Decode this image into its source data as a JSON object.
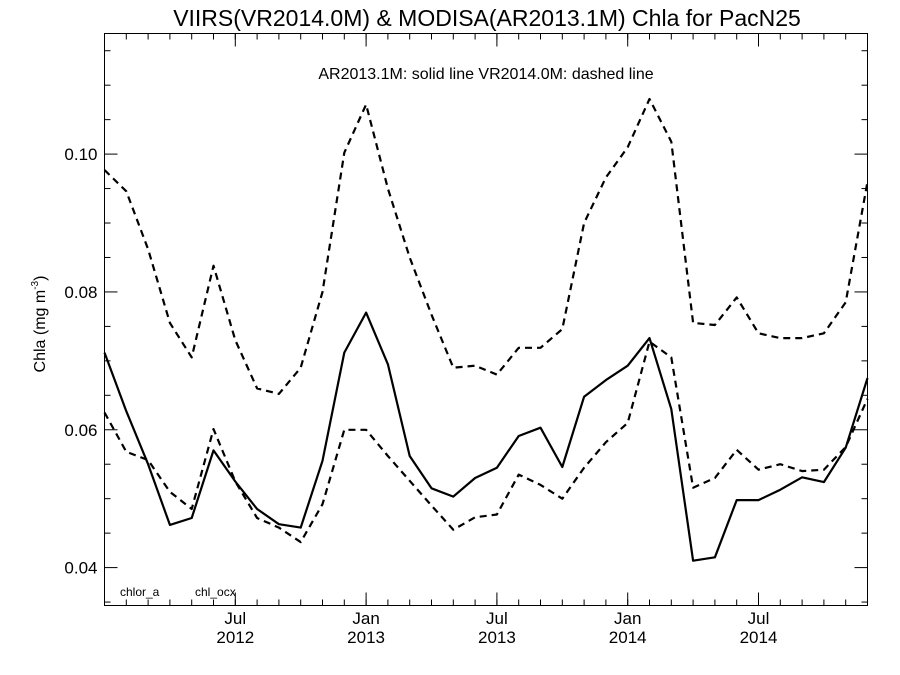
{
  "chart_data": {
    "type": "line",
    "title": "VIIRS(VR2014.0M) & MODISA(AR2013.1M)  Chla for PacN25",
    "annotation": "AR2013.1M: solid line   VR2014.0M: dashed line",
    "ylabel_main": "Chla (mg m",
    "ylabel_sup": "-3",
    "ylabel_close": ")",
    "ylim": [
      0.0345,
      0.1175
    ],
    "y_ticks": [
      0.04,
      0.06,
      0.08,
      0.1
    ],
    "y_tick_labels": [
      "0.04",
      "0.06",
      "0.08",
      "0.10"
    ],
    "x_range": [
      "2012-01",
      "2014-12"
    ],
    "x_ticks": [
      {
        "date": "2012-07",
        "month": "Jul",
        "year": "2012"
      },
      {
        "date": "2013-01",
        "month": "Jan",
        "year": "2013"
      },
      {
        "date": "2013-07",
        "month": "Jul",
        "year": "2013"
      },
      {
        "date": "2014-01",
        "month": "Jan",
        "year": "2014"
      },
      {
        "date": "2014-07",
        "month": "Jul",
        "year": "2014"
      }
    ],
    "legend_labels": [
      "chlor_a",
      "chl_ocx"
    ],
    "months": [
      "2012-01",
      "2012-02",
      "2012-03",
      "2012-04",
      "2012-05",
      "2012-06",
      "2012-07",
      "2012-08",
      "2012-09",
      "2012-10",
      "2012-11",
      "2012-12",
      "2013-01",
      "2013-02",
      "2013-03",
      "2013-04",
      "2013-05",
      "2013-06",
      "2013-07",
      "2013-08",
      "2013-09",
      "2013-10",
      "2013-11",
      "2013-12",
      "2014-01",
      "2014-02",
      "2014-03",
      "2014-04",
      "2014-05",
      "2014-06",
      "2014-07",
      "2014-08",
      "2014-09",
      "2014-10",
      "2014-11",
      "2014-12"
    ],
    "series": [
      {
        "product": "chlor_a",
        "sensor": "AR2013.1M",
        "style": "solid",
        "values": [
          0.0712,
          0.0627,
          0.055,
          0.0462,
          0.0472,
          0.057,
          0.0525,
          0.0485,
          0.0463,
          0.0458,
          0.0555,
          0.0712,
          0.077,
          0.0695,
          0.0562,
          0.0515,
          0.0503,
          0.053,
          0.0545,
          0.0591,
          0.0603,
          0.0546,
          0.0648,
          0.0672,
          0.0693,
          0.0733,
          0.063,
          0.041,
          0.0415,
          0.0498,
          0.0498,
          0.0513,
          0.0531,
          0.0524,
          0.0574,
          0.0675
        ]
      },
      {
        "product": "chlor_a",
        "sensor": "VR2014.0M",
        "style": "dashed",
        "values": [
          0.0625,
          0.0568,
          0.0556,
          0.051,
          0.0485,
          0.0601,
          0.0525,
          0.0472,
          0.0458,
          0.0437,
          0.0492,
          0.06,
          0.06,
          0.0562,
          0.0526,
          0.049,
          0.0455,
          0.0473,
          0.0477,
          0.0535,
          0.052,
          0.05,
          0.0545,
          0.0582,
          0.061,
          0.0728,
          0.0705,
          0.0516,
          0.053,
          0.0571,
          0.0542,
          0.055,
          0.054,
          0.0542,
          0.0575,
          0.0645
        ]
      },
      {
        "product": "chl_ocx",
        "sensor": "VR2014.0M",
        "style": "dashed",
        "values": [
          0.0977,
          0.0946,
          0.0862,
          0.0755,
          0.0705,
          0.0838,
          0.073,
          0.066,
          0.0652,
          0.069,
          0.08,
          0.1002,
          0.1072,
          0.095,
          0.085,
          0.0767,
          0.069,
          0.0693,
          0.068,
          0.0719,
          0.0719,
          0.0746,
          0.09,
          0.0966,
          0.101,
          0.108,
          0.1018,
          0.0755,
          0.0752,
          0.0792,
          0.074,
          0.0733,
          0.0733,
          0.074,
          0.0785,
          0.096
        ]
      }
    ],
    "grid": false
  }
}
